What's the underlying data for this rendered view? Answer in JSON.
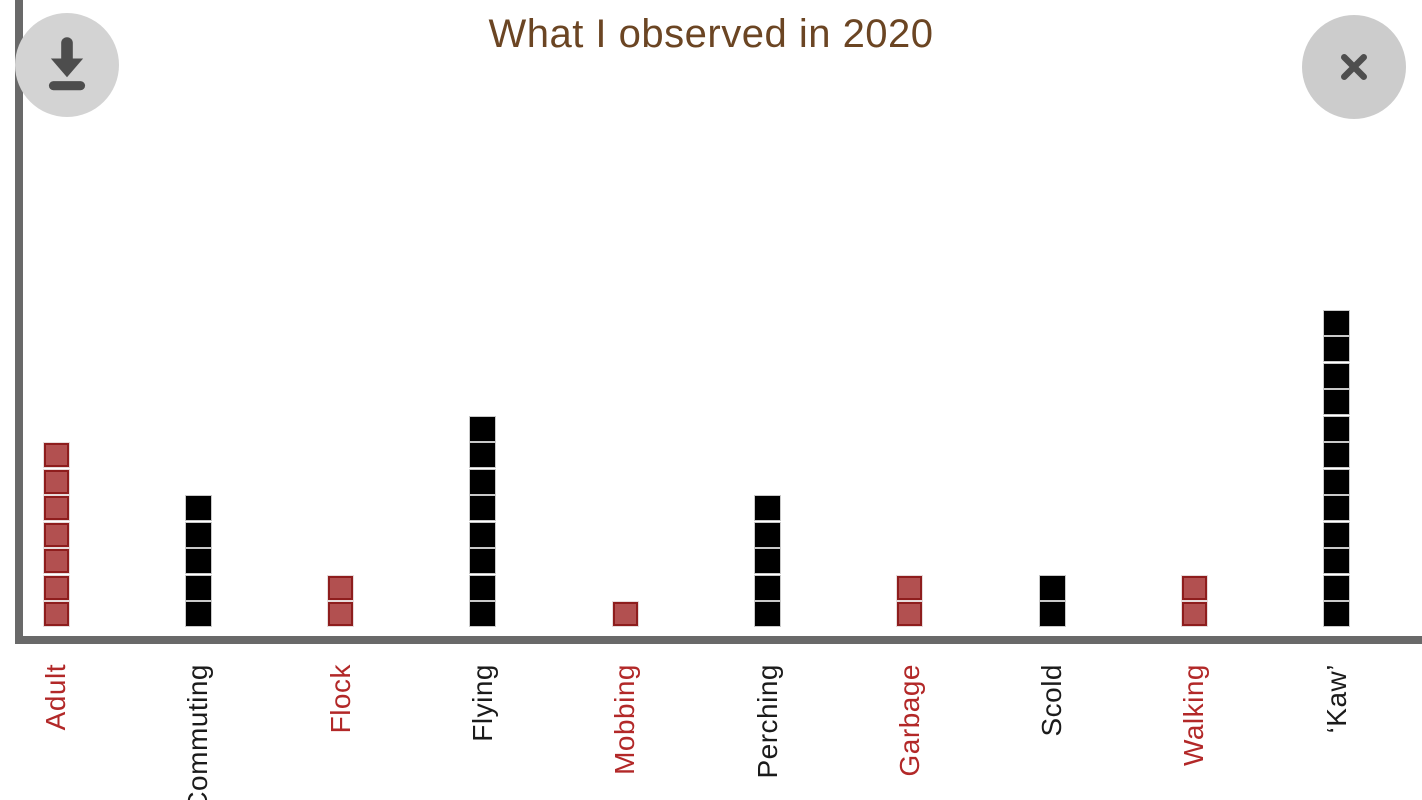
{
  "window": {
    "controls": {
      "download": "Download chart",
      "close": "Close"
    }
  },
  "chart_data": {
    "type": "bar",
    "subtype": "waffle-column-stack",
    "title": "What I observed in 2020",
    "categories": [
      "Adult",
      "Commuting",
      "Flock",
      "Flying",
      "Mobbing",
      "Perching",
      "Garbage",
      "Scold",
      "Walking",
      "‘Kaw’"
    ],
    "values": [
      7,
      5,
      2,
      8,
      1,
      5,
      2,
      2,
      2,
      12
    ],
    "category_colors": [
      "red",
      "black",
      "red",
      "black",
      "red",
      "black",
      "red",
      "black",
      "red",
      "black"
    ],
    "xlabel": "",
    "ylabel": "",
    "legend": false,
    "grid": false,
    "ylim": [
      0,
      12
    ],
    "palette": {
      "red_fill": "#b25050",
      "red_border": "#8e1d1d",
      "red_label": "#b22828",
      "black_fill": "#000000",
      "black_label": "#1b1b1b"
    }
  },
  "colors": {
    "background": "#ffffff",
    "axis": "#696969",
    "title": "#6b4523",
    "button_background": "#d3d3d3",
    "icon": "#4d4d4d"
  }
}
